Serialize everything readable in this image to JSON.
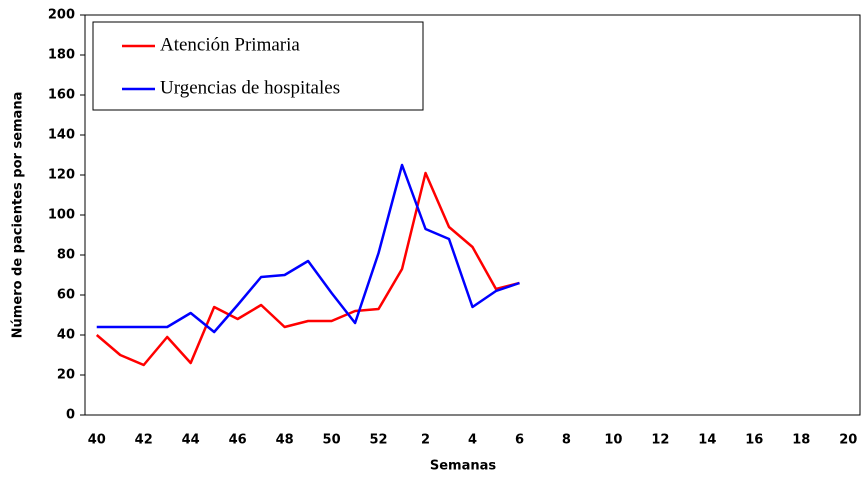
{
  "chart_data": {
    "type": "line",
    "x_label": "Semanas",
    "y_label": "Número de pacientes por semana",
    "categories": [
      40,
      null,
      42,
      null,
      44,
      null,
      46,
      null,
      48,
      null,
      50,
      null,
      52,
      null,
      2,
      null,
      4,
      null,
      6,
      null,
      8,
      null,
      10,
      null,
      12,
      null,
      14,
      null,
      16,
      null,
      18,
      null,
      20
    ],
    "series": [
      {
        "name": "Atención Primaria",
        "color": "#ff0000",
        "values": [
          40,
          30,
          25,
          39,
          26,
          54,
          48,
          55,
          44,
          47,
          47,
          52,
          53,
          73,
          121,
          94,
          84,
          63,
          66,
          null,
          null,
          null,
          null,
          null,
          null,
          null,
          null,
          null,
          null,
          null,
          null,
          null,
          null
        ]
      },
      {
        "name": "Urgencias de hospitales",
        "color": "#0000ff",
        "values": [
          44,
          44,
          44,
          44,
          51,
          41.5,
          55,
          69,
          70,
          77,
          61,
          46,
          81,
          125,
          93,
          88,
          54,
          62,
          66,
          null,
          null,
          null,
          null,
          null,
          null,
          null,
          null,
          null,
          null,
          null,
          null,
          null,
          null
        ]
      }
    ],
    "ylim": [
      0,
      200
    ],
    "yticks": [
      0,
      20,
      40,
      60,
      80,
      100,
      120,
      140,
      160,
      180,
      200
    ],
    "legend": "upper-left"
  }
}
